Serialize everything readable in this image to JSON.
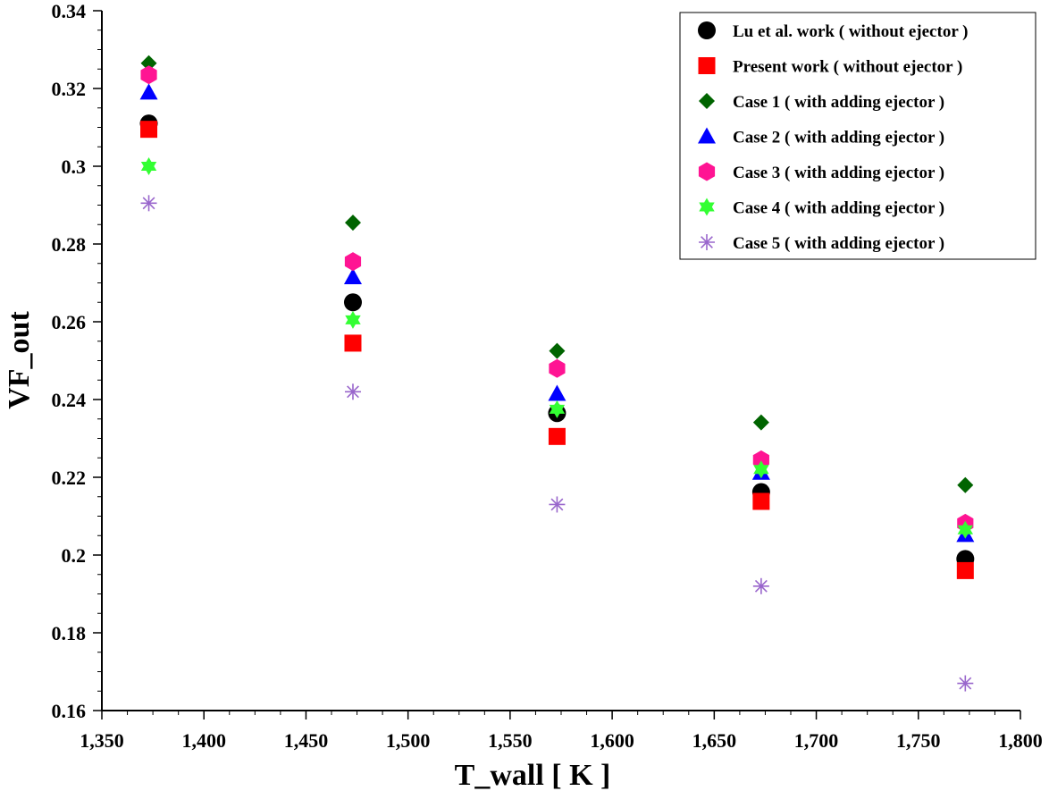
{
  "chart_data": {
    "type": "scatter",
    "title": "",
    "xlabel": "T_wall [ K ]",
    "ylabel": "VF_out",
    "xlim": [
      1350,
      1800
    ],
    "ylim": [
      0.16,
      0.34
    ],
    "x_ticks": [
      1350,
      1400,
      1450,
      1500,
      1550,
      1600,
      1650,
      1700,
      1750,
      1800
    ],
    "x_tick_labels": [
      "1,350",
      "1,400",
      "1,450",
      "1,500",
      "1,550",
      "1,600",
      "1,650",
      "1,700",
      "1,750",
      "1,800"
    ],
    "y_ticks": [
      0.16,
      0.18,
      0.2,
      0.22,
      0.24,
      0.26,
      0.28,
      0.3,
      0.32,
      0.34
    ],
    "y_tick_labels": [
      "0.16",
      "0.18",
      "0.2",
      "0.22",
      "0.24",
      "0.26",
      "0.28",
      "0.3",
      "0.32",
      "0.34"
    ],
    "grid": false,
    "legend_position": "top-right",
    "x": [
      1373,
      1473,
      1573,
      1673,
      1773
    ],
    "series": [
      {
        "name": "Lu et al. work ( without ejector )",
        "marker": "circle",
        "color": "#000000",
        "values": [
          0.311,
          0.265,
          0.2365,
          0.2162,
          0.199
        ]
      },
      {
        "name": "Present work ( without ejector )",
        "marker": "square",
        "color": "#ff0000",
        "values": [
          0.3095,
          0.2545,
          0.2305,
          0.2138,
          0.196
        ]
      },
      {
        "name": "Case 1 ( with adding ejector )",
        "marker": "diamond",
        "color": "#006400",
        "values": [
          0.3265,
          0.2855,
          0.2525,
          0.2341,
          0.218
        ]
      },
      {
        "name": "Case 2 ( with adding ejector )",
        "marker": "triangle",
        "color": "#0000ff",
        "values": [
          0.319,
          0.2715,
          0.2415,
          0.2212,
          0.2052
        ]
      },
      {
        "name": "Case 3 ( with adding ejector )",
        "marker": "hexagon",
        "color": "#ff1493",
        "values": [
          0.3235,
          0.2755,
          0.248,
          0.2245,
          0.2082
        ]
      },
      {
        "name": "Case 4 ( with adding ejector )",
        "marker": "star6",
        "color": "#33ff33",
        "values": [
          0.3,
          0.2605,
          0.2375,
          0.222,
          0.2065
        ]
      },
      {
        "name": "Case 5 ( with adding ejector )",
        "marker": "asterisk",
        "color": "#9966cc",
        "values": [
          0.2905,
          0.242,
          0.213,
          0.192,
          0.167
        ]
      }
    ]
  }
}
